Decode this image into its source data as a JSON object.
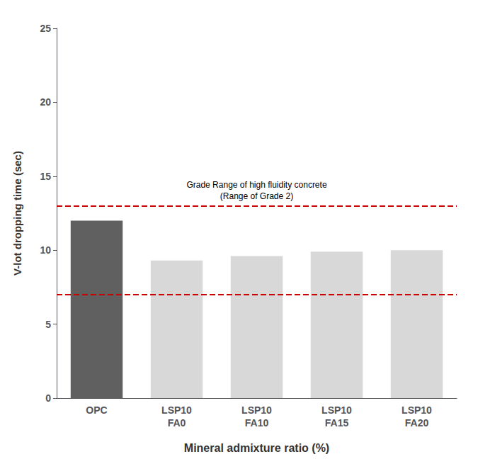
{
  "chart_data": {
    "type": "bar",
    "categories": [
      "OPC",
      "LSP10\nFA0",
      "LSP10\nFA10",
      "LSP10\nFA15",
      "LSP10\nFA20"
    ],
    "values": [
      12.0,
      9.3,
      9.6,
      9.9,
      10.0
    ],
    "colors": [
      "#606060",
      "#d8d8d8",
      "#d8d8d8",
      "#d8d8d8",
      "#d8d8d8"
    ],
    "xlabel": "Mineral admixture ratio (%)",
    "ylabel": "V-lot dropping time (sec)",
    "ylim": [
      0,
      25
    ],
    "yticks": [
      0,
      5,
      10,
      15,
      20,
      25
    ],
    "grid": false,
    "reference_lines": [
      {
        "y": 7.0,
        "color": "#cc0000",
        "line_style": "dashed"
      },
      {
        "y": 13.0,
        "color": "#cc0000",
        "line_style": "dashed"
      }
    ],
    "annotation": "Grade Range of high fluidity concrete\n(Range of Grade 2)"
  }
}
